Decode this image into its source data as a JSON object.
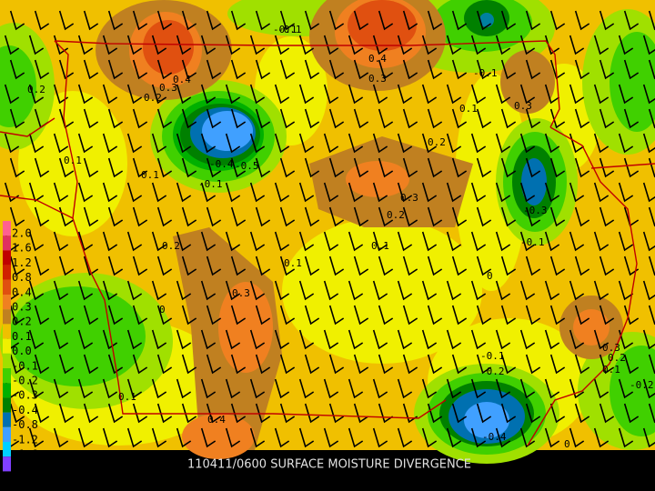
{
  "title": "110411/0600 SURFACE MOISTURE DIVERGENCE",
  "legend": {
    "labels": [
      "2.0",
      "1.6",
      "1.2",
      "0.8",
      "0.4",
      "0.3",
      "0.2",
      "0.1",
      "0.0",
      "-0.1",
      "-0.2",
      "-0.3",
      "-0.4",
      "-0.8",
      "-1.2",
      "-1.6"
    ]
  },
  "contour_labels": [
    "0.3",
    "0.4",
    "0.2",
    "0.4",
    "0.3",
    "-0.1",
    "-0.1",
    "0.3",
    "0.2",
    "0.1",
    "0.2",
    "0.3",
    "0.2",
    "-0.4",
    "-0.5",
    "-0.1",
    "0.1",
    "0.1",
    "0.2",
    "0.1",
    "0.3",
    "0",
    "0",
    "-0.3",
    "-0.1",
    "-0.1",
    "-0.2",
    "-0.4",
    "0.3",
    "0.1",
    "0.2",
    "-0.2",
    "0.1",
    "0.4",
    "-0.1",
    "0.1",
    "0"
  ]
}
